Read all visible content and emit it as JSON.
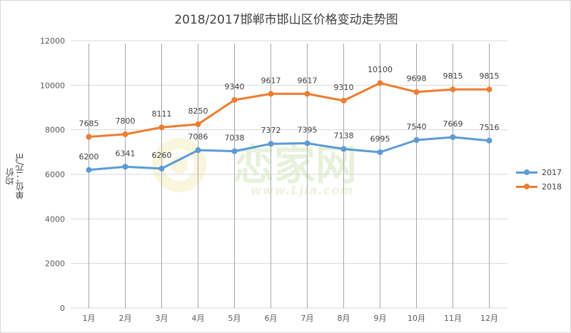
{
  "chart_data": {
    "type": "line",
    "title": "2018/2017邯郸市邯山区价格变动走势图",
    "ylabel_line1": "均价",
    "ylabel_line2": "单位：元/㎡",
    "categories": [
      "1月",
      "2月",
      "3月",
      "4月",
      "5月",
      "6月",
      "7月",
      "8月",
      "9月",
      "10月",
      "11月",
      "12月"
    ],
    "ylim": [
      0,
      12000
    ],
    "yticks": [
      0,
      2000,
      4000,
      6000,
      8000,
      10000,
      12000
    ],
    "grid": "horizontal and vertical",
    "legend_position": "right",
    "series": [
      {
        "name": "2017",
        "color": "#5b9bd5",
        "values": [
          6200,
          6341,
          6260,
          7086,
          7038,
          7372,
          7395,
          7138,
          6995,
          7540,
          7669,
          7516
        ]
      },
      {
        "name": "2018",
        "color": "#ed7d31",
        "values": [
          7685,
          7800,
          8111,
          8250,
          9340,
          9617,
          9617,
          9310,
          10100,
          9698,
          9815,
          9815
        ]
      }
    ]
  },
  "watermark": {
    "text": "www.Ljia.com"
  }
}
